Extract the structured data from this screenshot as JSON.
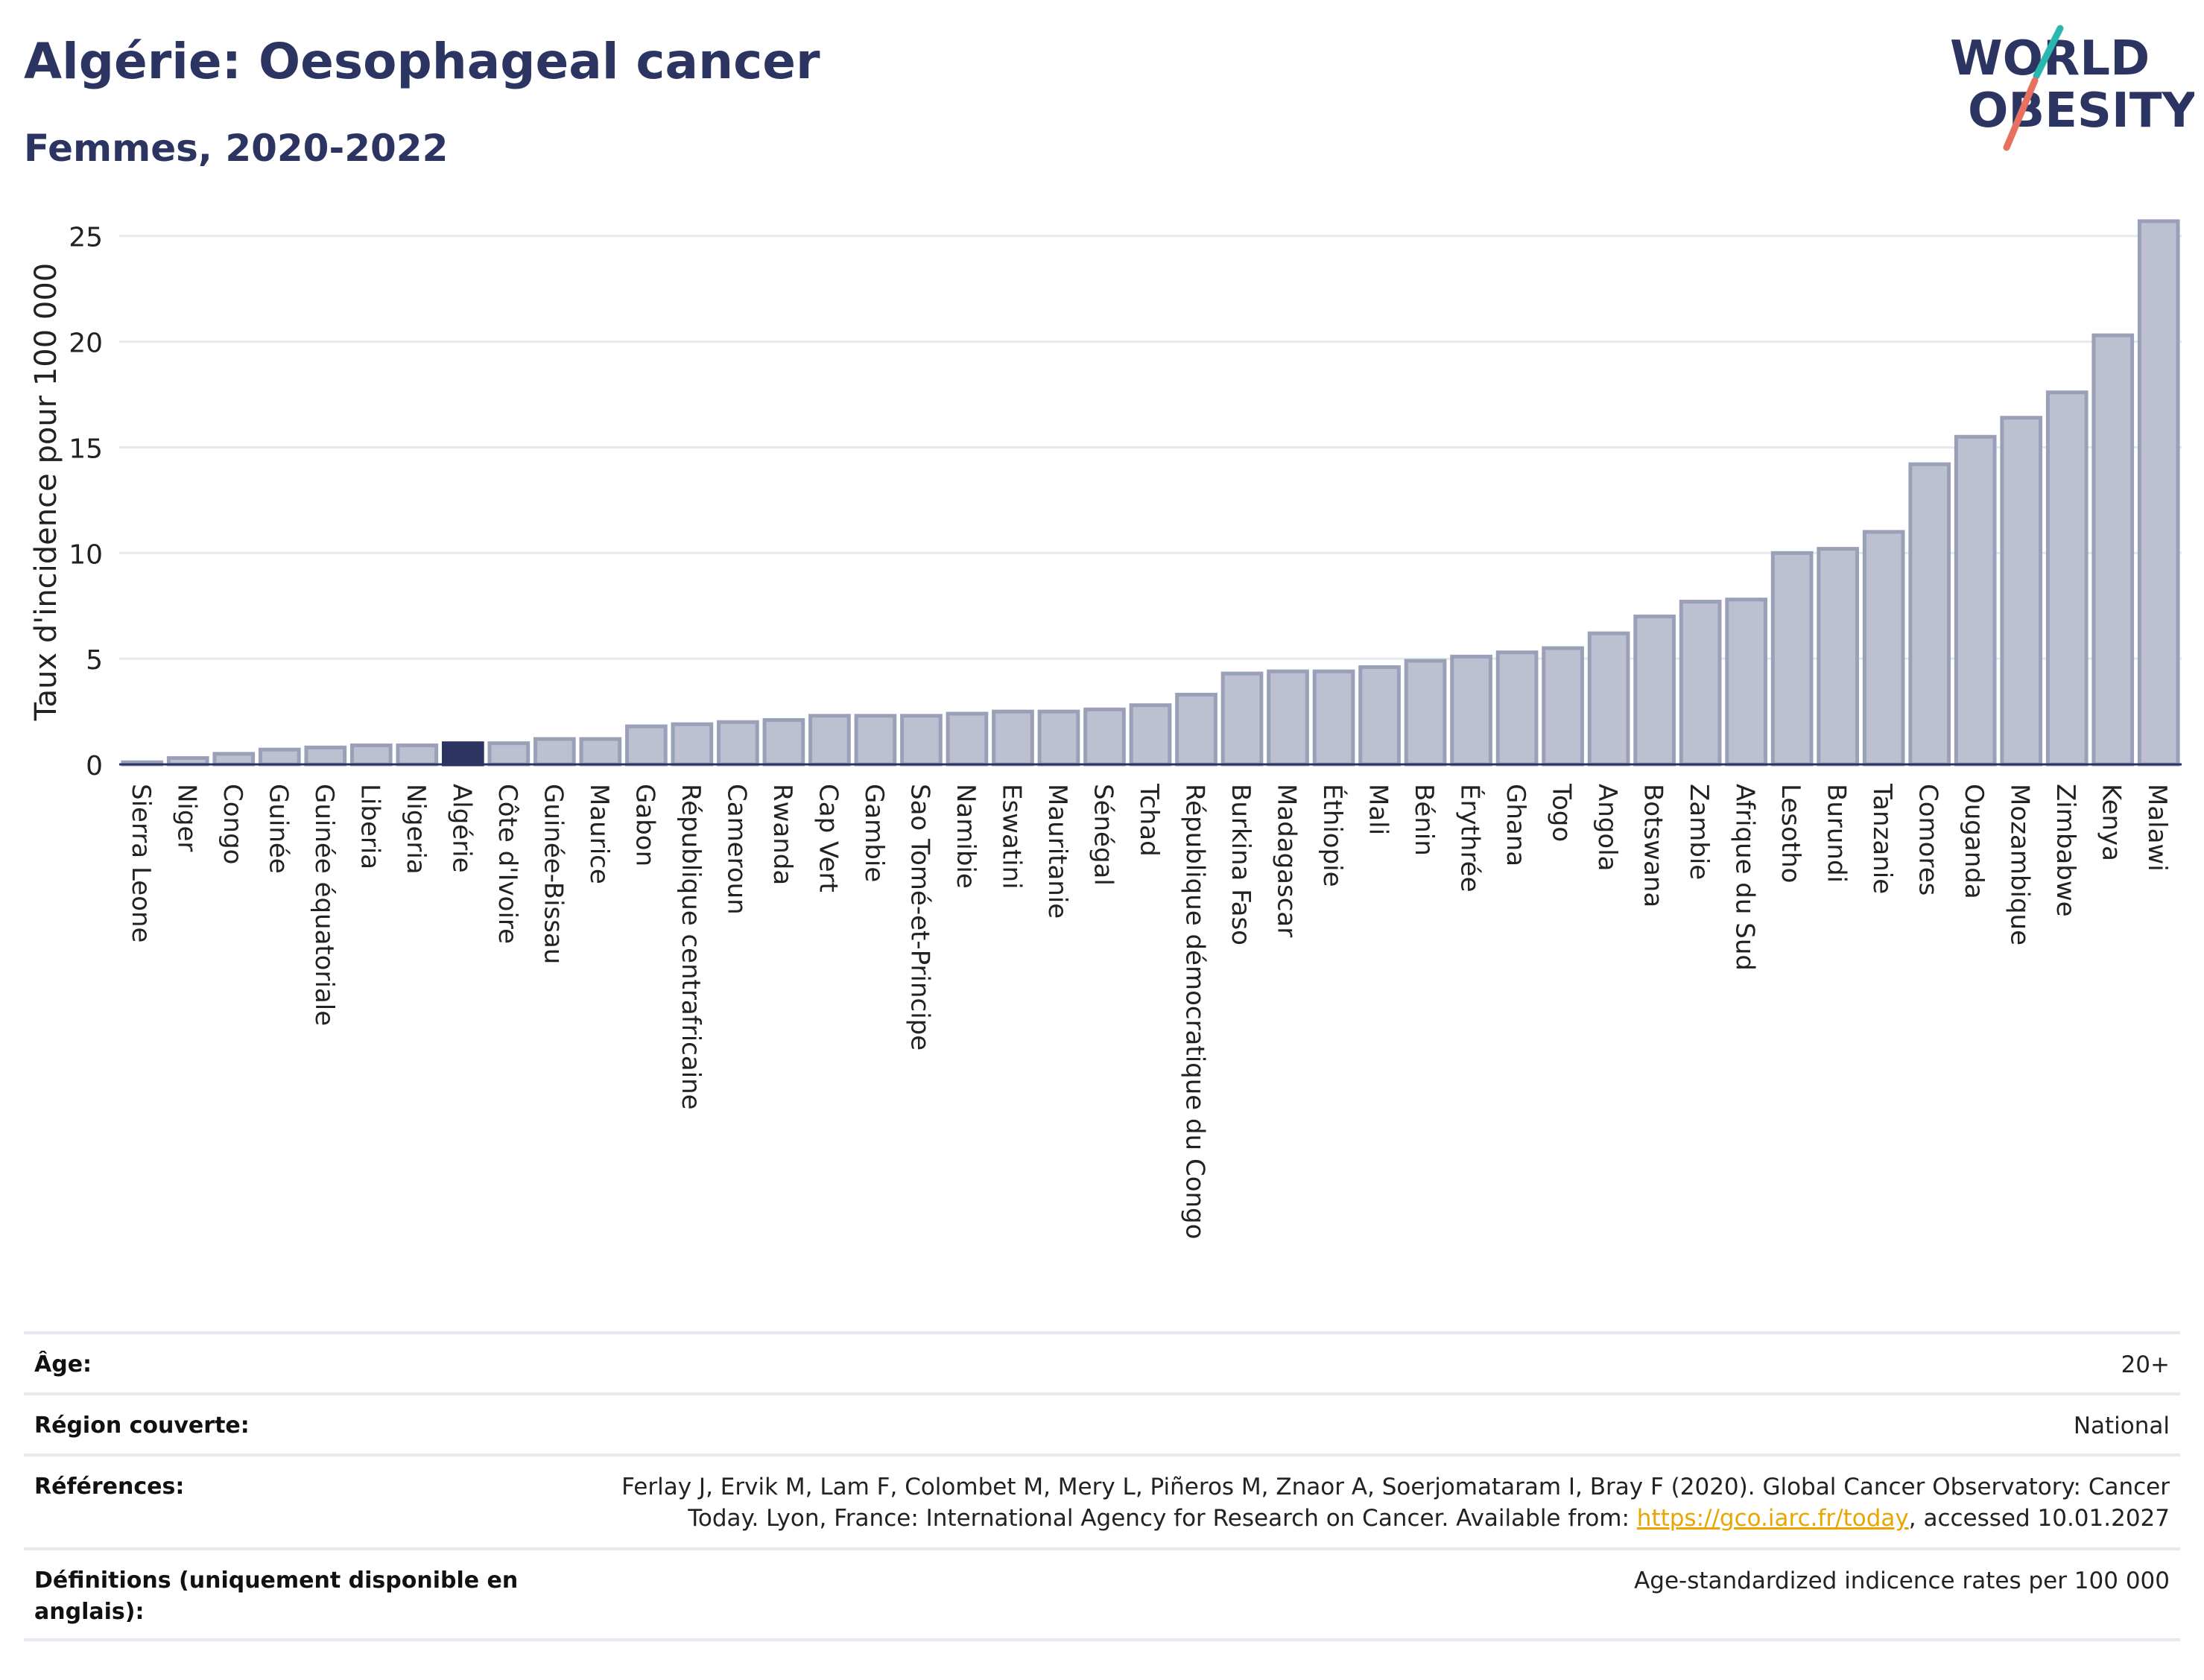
{
  "header": {
    "title": "Algérie: Oesophageal cancer",
    "subtitle": "Femmes, 2020-2022"
  },
  "logo": {
    "line1": "WORLD",
    "line2": "OBESITY"
  },
  "colors": {
    "title": "#2c3562",
    "bar": "#bcc0d0",
    "bar_stroke": "#9aa0b8",
    "highlight": "#2c3562",
    "link": "#e8a600",
    "grid": "#e6e8ee"
  },
  "chart_data": {
    "type": "bar",
    "ylabel": "Taux d'incidence pour 100 000",
    "xlabel": "",
    "ylim": [
      0,
      27
    ],
    "yticks": [
      0,
      5,
      10,
      15,
      20,
      25
    ],
    "grid": true,
    "highlight": "Algérie",
    "categories": [
      "Sierra Leone",
      "Niger",
      "Congo",
      "Guinée",
      "Guinée équatoriale",
      "Liberia",
      "Nigeria",
      "Algérie",
      "Côte d'Ivoire",
      "Guinée-Bissau",
      "Maurice",
      "Gabon",
      "République centrafricaine",
      "Cameroun",
      "Rwanda",
      "Cap Vert",
      "Gambie",
      "Sao Tomé-et-Principe",
      "Namibie",
      "Eswatini",
      "Mauritanie",
      "Sénégal",
      "Tchad",
      "République démocratique du Congo",
      "Burkina Faso",
      "Madagascar",
      "Éthiopie",
      "Mali",
      "Bénin",
      "Érythrée",
      "Ghana",
      "Togo",
      "Angola",
      "Botswana",
      "Zambie",
      "Afrique du Sud",
      "Lesotho",
      "Burundi",
      "Tanzanie",
      "Comores",
      "Ouganda",
      "Mozambique",
      "Zimbabwe",
      "Kenya",
      "Malawi"
    ],
    "values": [
      0.1,
      0.3,
      0.5,
      0.7,
      0.8,
      0.9,
      0.9,
      1.0,
      1.0,
      1.2,
      1.2,
      1.8,
      1.9,
      2.0,
      2.1,
      2.3,
      2.3,
      2.3,
      2.4,
      2.5,
      2.5,
      2.6,
      2.8,
      3.3,
      4.3,
      4.4,
      4.4,
      4.6,
      4.9,
      5.1,
      5.3,
      5.5,
      6.2,
      7.0,
      7.7,
      7.8,
      10.0,
      10.2,
      11.0,
      14.2,
      15.5,
      16.4,
      17.6,
      20.3,
      25.7
    ]
  },
  "meta": {
    "age_label": "Âge:",
    "age_value": "20+",
    "region_label": "Région couverte:",
    "region_value": "National",
    "references_label": "Références:",
    "references_line1": "Ferlay J, Ervik M, Lam F, Colombet M, Mery L, Piñeros M, Znaor A, Soerjomataram I, Bray F (2020). Global Cancer Observatory: Cancer",
    "references_line2_pre": "Today. Lyon, France: International Agency for Research on Cancer. Available from: ",
    "references_link": "https://gco.iarc.fr/today",
    "references_line2_post": ", accessed 10.01.2027",
    "definitions_label": "Définitions (uniquement disponible en anglais):",
    "definitions_value": "Age-standardized indicence rates per 100 000"
  }
}
